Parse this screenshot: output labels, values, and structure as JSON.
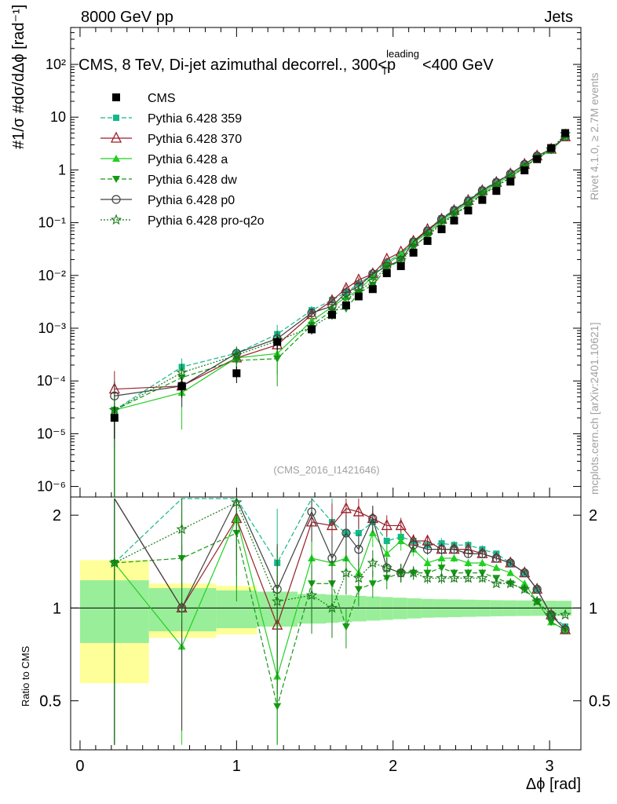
{
  "header": {
    "left": "8000 GeV pp",
    "right": "Jets"
  },
  "chart_data": {
    "type": "line",
    "title_prefix": "CMS, 8 TeV, Di-jet azimuthal decorrel., 300<p",
    "title_sup": "leading",
    "title_sub": "T",
    "title_suffix": "<400 GeV",
    "analysis_id": "(CMS_2016_I1421646)",
    "side_label_top": "Rivet 4.1.0, ≥ 2.7M events",
    "side_label_bottom": "mcplots.cern.ch [arXiv:2401.10621]",
    "xlabel": "Δϕ [rad]",
    "ylabel": "#1/σ #dσ/dΔϕ [rad⁻¹]",
    "ylabel_ratio": "Ratio to CMS",
    "xlim": [
      -0.06,
      3.2
    ],
    "ylim_main_log10": [
      -6.2,
      2.7
    ],
    "ylim_ratio_log10": [
      -0.46,
      0.36
    ],
    "x_ticks": [
      "0",
      "1",
      "2",
      "3"
    ],
    "y_ticks_main": [
      "10⁻⁶",
      "10⁻⁵",
      "10⁻⁴",
      "10⁻³",
      "10⁻²",
      "10⁻¹",
      "1",
      "10",
      "10²"
    ],
    "y_ticks_ratio": [
      "0.5",
      "1",
      "2"
    ],
    "x": [
      0.22,
      0.65,
      1.0,
      1.26,
      1.48,
      1.61,
      1.7,
      1.78,
      1.87,
      1.96,
      2.05,
      2.13,
      2.22,
      2.31,
      2.39,
      2.48,
      2.57,
      2.66,
      2.75,
      2.84,
      2.92,
      3.01,
      3.1
    ],
    "data": {
      "name": "CMS",
      "values": [
        2e-05,
        8e-05,
        0.00014,
        0.00055,
        0.00095,
        0.0018,
        0.0027,
        0.004,
        0.0055,
        0.011,
        0.015,
        0.027,
        0.045,
        0.075,
        0.11,
        0.17,
        0.27,
        0.4,
        0.6,
        0.98,
        1.6,
        2.6,
        5.0
      ],
      "rel_err": [
        0.6,
        0.4,
        0.35,
        0.3,
        0.2,
        0.18,
        0.15,
        0.12,
        0.1,
        0.08,
        0.07,
        0.06,
        0.05,
        0.04,
        0.04,
        0.035,
        0.03,
        0.03,
        0.025,
        0.02,
        0.02,
        0.02,
        0.02
      ]
    },
    "band": {
      "edges": [
        0.0,
        0.44,
        0.87,
        1.13,
        1.39,
        1.57,
        1.65,
        1.74,
        1.83,
        1.92,
        2.0,
        2.09,
        2.18,
        2.26,
        2.35,
        2.44,
        2.53,
        2.62,
        2.7,
        2.79,
        2.88,
        2.97,
        3.05,
        3.14
      ],
      "stat": [
        0.18,
        0.11,
        0.09,
        0.08,
        0.06,
        0.055,
        0.05,
        0.045,
        0.04,
        0.035,
        0.03,
        0.025,
        0.02,
        0.018,
        0.016,
        0.014,
        0.012,
        0.01,
        0.009,
        0.008,
        0.007,
        0.006,
        0.005
      ],
      "syst": [
        0.43,
        0.2,
        0.18,
        0.13,
        0.08,
        0.07,
        0.065,
        0.055,
        0.05,
        0.045,
        0.04,
        0.035,
        0.03,
        0.027,
        0.024,
        0.021,
        0.018,
        0.015,
        0.013,
        0.011,
        0.01,
        0.008,
        0.007
      ]
    },
    "series": [
      {
        "name": "Pythia 6.428 359",
        "color": "#14b88a",
        "dash": "6,3",
        "marker": "square",
        "ratio": [
          1.4,
          2.3,
          2.4,
          1.4,
          2.3,
          1.9,
          1.75,
          1.75,
          1.9,
          1.65,
          1.7,
          1.65,
          1.6,
          1.62,
          1.6,
          1.6,
          1.55,
          1.5,
          1.4,
          1.3,
          1.15,
          0.95,
          0.87
        ],
        "rel_err": [
          1.0,
          0.45,
          0.35,
          0.5,
          0.2,
          0.2,
          0.15,
          0.12,
          0.1,
          0.08,
          0.06,
          0.05,
          0.04,
          0.04,
          0.03,
          0.03,
          0.03,
          0.02,
          0.02,
          0.02,
          0.02,
          0.02,
          0.02
        ]
      },
      {
        "name": "Pythia 6.428 370",
        "color": "#9a1f2a",
        "dash": "",
        "marker": "triangle-open",
        "ratio": [
          3.5,
          1.0,
          1.95,
          0.88,
          1.9,
          1.85,
          2.1,
          2.05,
          1.95,
          1.85,
          1.85,
          1.65,
          1.65,
          1.55,
          1.55,
          1.55,
          1.5,
          1.45,
          1.4,
          1.3,
          1.15,
          0.95,
          0.85
        ],
        "rel_err": [
          1.2,
          0.6,
          0.35,
          0.45,
          0.2,
          0.18,
          0.15,
          0.12,
          0.1,
          0.08,
          0.06,
          0.05,
          0.04,
          0.04,
          0.03,
          0.03,
          0.03,
          0.02,
          0.02,
          0.02,
          0.02,
          0.02,
          0.02
        ]
      },
      {
        "name": "Pythia 6.428 a",
        "color": "#22d022",
        "dash": "",
        "marker": "triangle",
        "ratio": [
          1.4,
          0.75,
          1.95,
          0.6,
          1.45,
          1.4,
          1.45,
          1.3,
          1.75,
          1.5,
          1.65,
          1.55,
          1.4,
          1.45,
          1.45,
          1.4,
          1.4,
          1.35,
          1.3,
          1.2,
          1.05,
          0.9,
          0.85
        ],
        "rel_err": [
          1.0,
          0.8,
          0.4,
          0.6,
          0.25,
          0.2,
          0.15,
          0.12,
          0.1,
          0.08,
          0.07,
          0.05,
          0.04,
          0.04,
          0.03,
          0.03,
          0.03,
          0.02,
          0.02,
          0.02,
          0.02,
          0.02,
          0.02
        ]
      },
      {
        "name": "Pythia 6.428 dw",
        "color": "#159a15",
        "dash": "6,3",
        "marker": "triangle-down",
        "ratio": [
          1.4,
          1.45,
          1.75,
          0.48,
          1.2,
          1.2,
          0.87,
          1.15,
          1.2,
          1.25,
          1.3,
          1.3,
          1.3,
          1.35,
          1.3,
          1.3,
          1.3,
          1.25,
          1.2,
          1.15,
          1.05,
          0.9,
          0.85
        ],
        "rel_err": [
          1.0,
          0.6,
          0.4,
          0.7,
          0.25,
          0.2,
          0.15,
          0.12,
          0.1,
          0.08,
          0.07,
          0.05,
          0.04,
          0.04,
          0.03,
          0.03,
          0.03,
          0.02,
          0.02,
          0.02,
          0.02,
          0.02,
          0.02
        ]
      },
      {
        "name": "Pythia 6.428 p0",
        "color": "#404040",
        "dash": "",
        "marker": "circle-open",
        "ratio": [
          2.6,
          1.0,
          2.4,
          1.15,
          2.05,
          1.45,
          1.75,
          1.55,
          1.95,
          1.35,
          1.3,
          1.6,
          1.55,
          1.55,
          1.55,
          1.5,
          1.5,
          1.45,
          1.4,
          1.3,
          1.15,
          0.95,
          0.85
        ],
        "rel_err": [
          0.9,
          0.6,
          0.3,
          0.4,
          0.2,
          0.18,
          0.15,
          0.12,
          0.1,
          0.08,
          0.06,
          0.05,
          0.04,
          0.04,
          0.03,
          0.03,
          0.03,
          0.02,
          0.02,
          0.02,
          0.02,
          0.02,
          0.02
        ]
      },
      {
        "name": "Pythia 6.428 pro-q2o",
        "color": "#187a18",
        "dash": "2,2",
        "marker": "star-open",
        "ratio": [
          1.4,
          1.8,
          2.2,
          1.05,
          1.1,
          1.0,
          1.3,
          1.25,
          1.4,
          1.35,
          1.3,
          1.3,
          1.25,
          1.25,
          1.25,
          1.25,
          1.25,
          1.2,
          1.2,
          1.15,
          1.05,
          0.95,
          0.95
        ],
        "rel_err": [
          1.0,
          0.5,
          0.35,
          0.5,
          0.25,
          0.2,
          0.15,
          0.12,
          0.1,
          0.08,
          0.07,
          0.05,
          0.04,
          0.04,
          0.03,
          0.03,
          0.03,
          0.02,
          0.02,
          0.02,
          0.02,
          0.02,
          0.02
        ]
      }
    ]
  }
}
